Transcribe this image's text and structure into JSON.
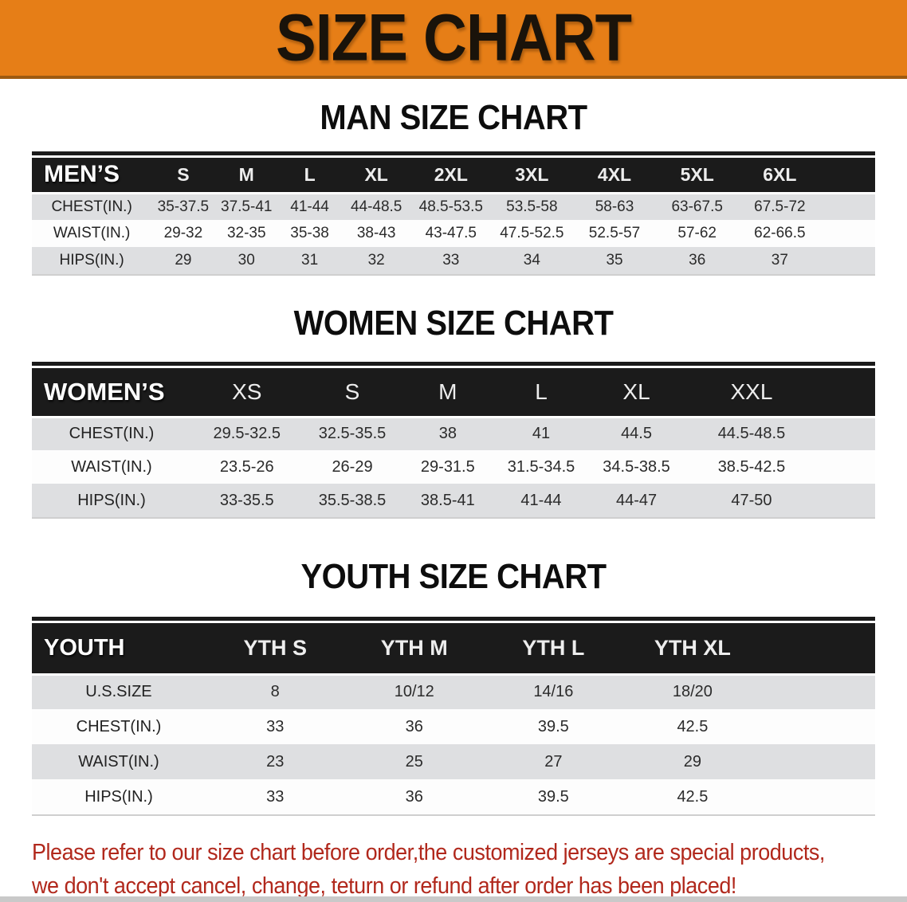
{
  "banner": {
    "title": "SIZE CHART"
  },
  "colors": {
    "banner_orange": "#E67E17",
    "table_header_black": "#1B1B1B",
    "row_gray": "#DEDFE1",
    "row_white": "#FDFDFD",
    "note_red": "#B1281C",
    "heading_black": "#0D0D0D"
  },
  "men": {
    "heading": "MAN SIZE CHART",
    "label": "MEN’S",
    "sizes": [
      "S",
      "M",
      "L",
      "XL",
      "2XL",
      "3XL",
      "4XL",
      "5XL",
      "6XL"
    ],
    "rows": [
      {
        "label": "CHEST(IN.)",
        "values": [
          "35-37.5",
          "37.5-41",
          "41-44",
          "44-48.5",
          "48.5-53.5",
          "53.5-58",
          "58-63",
          "63-67.5",
          "67.5-72"
        ]
      },
      {
        "label": "WAIST(IN.)",
        "values": [
          "29-32",
          "32-35",
          "35-38",
          "38-43",
          "43-47.5",
          "47.5-52.5",
          "52.5-57",
          "57-62",
          "62-66.5"
        ]
      },
      {
        "label": "HIPS(IN.)",
        "values": [
          "29",
          "30",
          "31",
          "32",
          "33",
          "34",
          "35",
          "36",
          "37"
        ]
      }
    ]
  },
  "women": {
    "heading": "WOMEN SIZE CHART",
    "label": "WOMEN’S",
    "sizes": [
      "XS",
      "S",
      "M",
      "L",
      "XL",
      "XXL"
    ],
    "rows": [
      {
        "label": "CHEST(IN.)",
        "values": [
          "29.5-32.5",
          "32.5-35.5",
          "38",
          "41",
          "44.5",
          "44.5-48.5"
        ]
      },
      {
        "label": "WAIST(IN.)",
        "values": [
          "23.5-26",
          "26-29",
          "29-31.5",
          "31.5-34.5",
          "34.5-38.5",
          "38.5-42.5"
        ]
      },
      {
        "label": "HIPS(IN.)",
        "values": [
          "33-35.5",
          "35.5-38.5",
          "38.5-41",
          "41-44",
          "44-47",
          "47-50"
        ]
      }
    ]
  },
  "youth": {
    "heading": "YOUTH SIZE CHART",
    "label": "YOUTH",
    "sizes": [
      "YTH S",
      "YTH M",
      "YTH L",
      "YTH XL"
    ],
    "rows": [
      {
        "label": "U.S.SIZE",
        "values": [
          "8",
          "10/12",
          "14/16",
          "18/20"
        ]
      },
      {
        "label": "CHEST(IN.)",
        "values": [
          "33",
          "36",
          "39.5",
          "42.5"
        ]
      },
      {
        "label": "WAIST(IN.)",
        "values": [
          "23",
          "25",
          "27",
          "29"
        ]
      },
      {
        "label": "HIPS(IN.)",
        "values": [
          "33",
          "36",
          "39.5",
          "42.5"
        ]
      }
    ]
  },
  "note": {
    "line1": "Please refer to our size chart before order,the customized jerseys are special products,",
    "line2": "we don't accept cancel, change, teturn or refund after order has been placed!"
  }
}
